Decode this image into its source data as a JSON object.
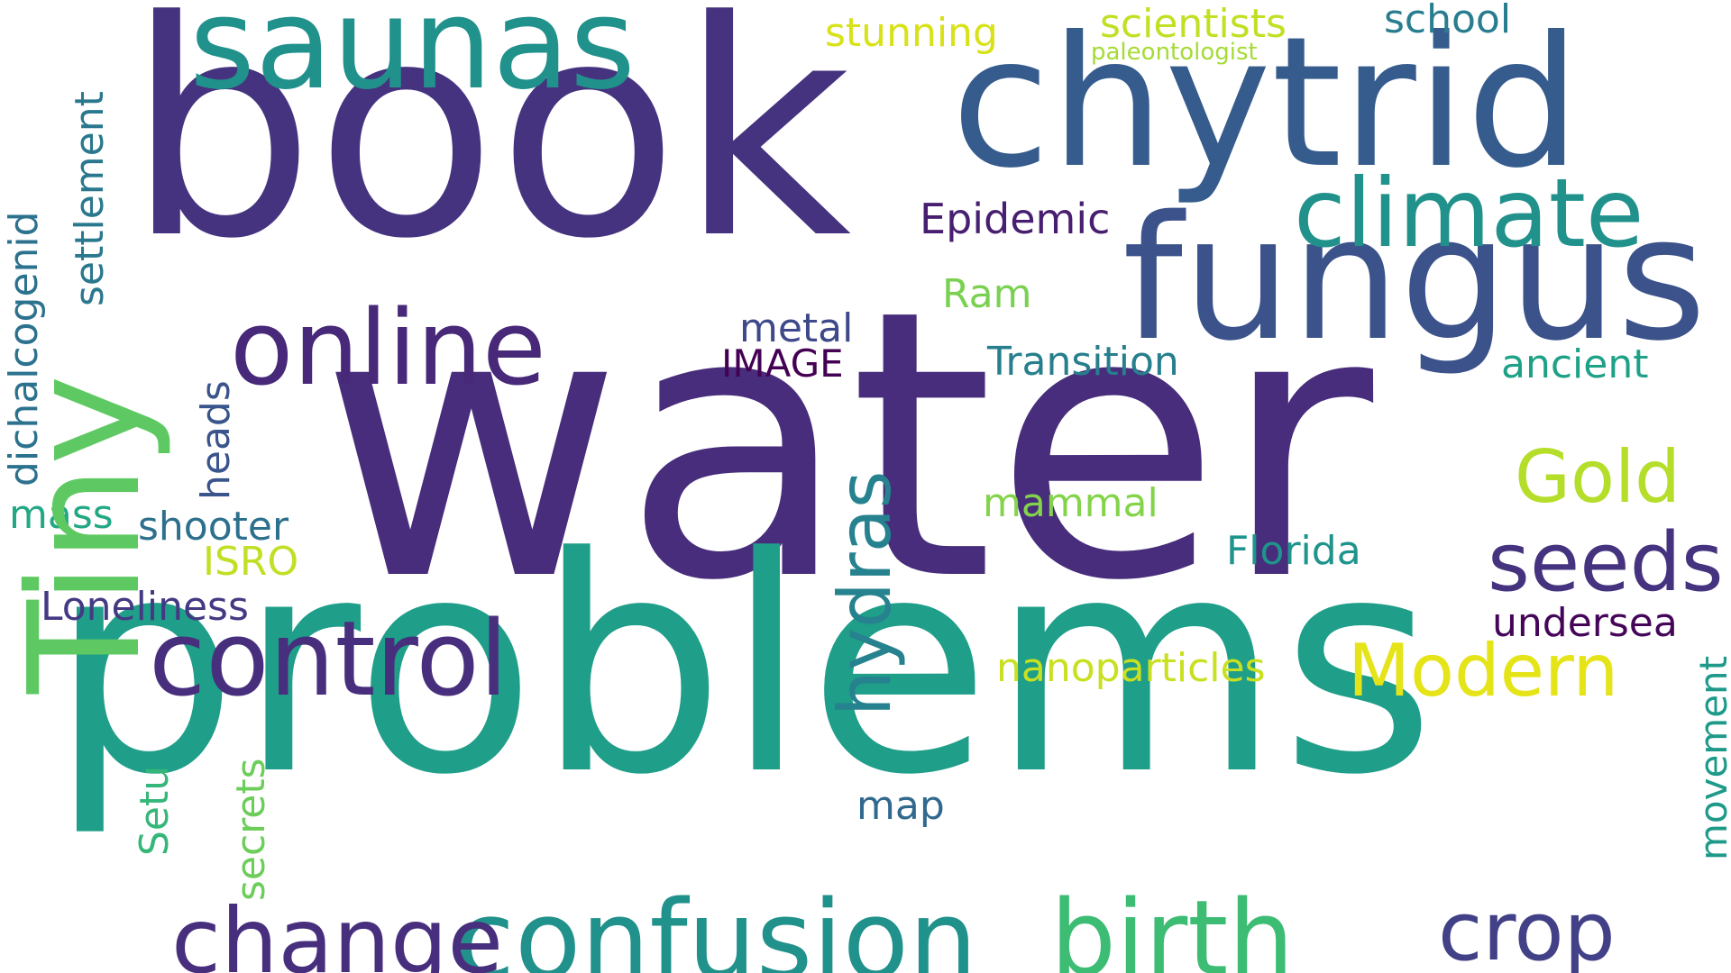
{
  "words": {
    "water": {
      "text": "water",
      "color": "#472d7b"
    },
    "problems": {
      "text": "problems",
      "color": "#1f9e89"
    },
    "book": {
      "text": "book",
      "color": "#46337f"
    },
    "chytrid": {
      "text": "chytrid",
      "color": "#365c8d"
    },
    "fungus": {
      "text": "fungus",
      "color": "#3b528b"
    },
    "saunas": {
      "text": "saunas",
      "color": "#21918c"
    },
    "tiny": {
      "text": "Tiny",
      "color": "#5ec962"
    },
    "online": {
      "text": "online",
      "color": "#482878"
    },
    "climate": {
      "text": "climate",
      "color": "#21918c"
    },
    "control": {
      "text": "control",
      "color": "#472f7d"
    },
    "confusion": {
      "text": "confusion",
      "color": "#21918c"
    },
    "birth": {
      "text": "birth",
      "color": "#3dbc74"
    },
    "change": {
      "text": "change",
      "color": "#472f7d"
    },
    "crop": {
      "text": "crop",
      "color": "#424086"
    },
    "seeds": {
      "text": "seeds",
      "color": "#46337f"
    },
    "modern": {
      "text": "Modern",
      "color": "#e5e419"
    },
    "gold": {
      "text": "Gold",
      "color": "#b5de2b"
    },
    "hydras": {
      "text": "hydras",
      "color": "#26828e"
    },
    "scientists": {
      "text": "scientists",
      "color": "#c2df23"
    },
    "school": {
      "text": "school",
      "color": "#287d8e"
    },
    "stunning": {
      "text": "stunning",
      "color": "#d8e219"
    },
    "paleontologist": {
      "text": "paleontologist",
      "color": "#a5db36"
    },
    "epidemic": {
      "text": "Epidemic",
      "color": "#481f70"
    },
    "ram": {
      "text": "Ram",
      "color": "#7ad151"
    },
    "transition": {
      "text": "Transition",
      "color": "#277f8e"
    },
    "ancient": {
      "text": "ancient",
      "color": "#1fa187"
    },
    "metal": {
      "text": "metal",
      "color": "#3e4989"
    },
    "image": {
      "text": "IMAGE",
      "color": "#440154"
    },
    "mammal": {
      "text": "mammal",
      "color": "#84d44b"
    },
    "florida": {
      "text": "Florida",
      "color": "#1f948c"
    },
    "undersea": {
      "text": "undersea",
      "color": "#450559"
    },
    "nanoparticles": {
      "text": "nanoparticles",
      "color": "#c8e020"
    },
    "map": {
      "text": "map",
      "color": "#31688e"
    },
    "movement": {
      "text": "movement",
      "color": "#1f9a8a"
    },
    "settlement": {
      "text": "settlement",
      "color": "#2a788e"
    },
    "dichalcogenid": {
      "text": "dichalcogenid",
      "color": "#2c728e"
    },
    "heads": {
      "text": "heads",
      "color": "#3a548c"
    },
    "mass": {
      "text": "mass",
      "color": "#22a884"
    },
    "shooter": {
      "text": "shooter",
      "color": "#2d708e"
    },
    "isro": {
      "text": "ISRO",
      "color": "#c0df25"
    },
    "loneliness": {
      "text": "Loneliness",
      "color": "#443983"
    },
    "setu": {
      "text": "Setu",
      "color": "#35b779"
    },
    "secrets": {
      "text": "secrets",
      "color": "#6ccd5a"
    }
  }
}
